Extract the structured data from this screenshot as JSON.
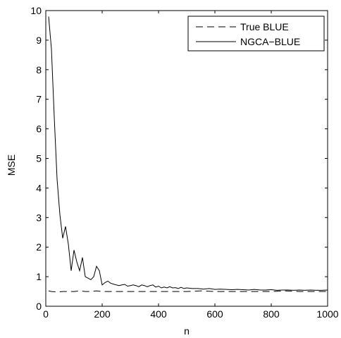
{
  "chart_data": {
    "type": "line",
    "xlabel": "n",
    "ylabel": "MSE",
    "xlim": [
      0,
      1000
    ],
    "ylim": [
      0,
      10
    ],
    "xticks": [
      0,
      200,
      400,
      600,
      800,
      1000
    ],
    "yticks": [
      0,
      1,
      2,
      3,
      4,
      5,
      6,
      7,
      8,
      9,
      10
    ],
    "grid": false,
    "legend_position": "top-right",
    "series": [
      {
        "name": "True BLUE",
        "style": "dashed",
        "color": "#000000",
        "x": [
          10,
          20,
          40,
          60,
          80,
          100,
          120,
          140,
          160,
          180,
          200,
          250,
          300,
          350,
          400,
          450,
          500,
          550,
          600,
          650,
          700,
          750,
          800,
          850,
          900,
          950,
          1000
        ],
        "y": [
          0.52,
          0.5,
          0.48,
          0.5,
          0.5,
          0.5,
          0.52,
          0.5,
          0.5,
          0.52,
          0.5,
          0.5,
          0.5,
          0.5,
          0.5,
          0.5,
          0.5,
          0.52,
          0.5,
          0.5,
          0.5,
          0.5,
          0.5,
          0.52,
          0.5,
          0.5,
          0.5
        ]
      },
      {
        "name": "NGCA−BLUE",
        "style": "solid",
        "color": "#000000",
        "x": [
          10,
          20,
          30,
          40,
          50,
          60,
          70,
          80,
          90,
          100,
          110,
          120,
          130,
          140,
          150,
          160,
          170,
          180,
          190,
          200,
          210,
          220,
          230,
          240,
          250,
          260,
          270,
          280,
          290,
          300,
          310,
          320,
          330,
          340,
          350,
          360,
          370,
          380,
          390,
          400,
          410,
          420,
          430,
          440,
          450,
          460,
          470,
          480,
          490,
          500,
          520,
          540,
          560,
          580,
          600,
          620,
          640,
          660,
          680,
          700,
          720,
          740,
          760,
          780,
          800,
          820,
          840,
          860,
          880,
          900,
          920,
          940,
          960,
          980,
          1000
        ],
        "y": [
          9.8,
          8.7,
          6.4,
          4.3,
          3.1,
          2.3,
          2.7,
          2.1,
          1.2,
          1.9,
          1.5,
          1.2,
          1.65,
          1.0,
          0.95,
          0.9,
          1.0,
          1.35,
          1.2,
          0.72,
          0.8,
          0.85,
          0.78,
          0.75,
          0.72,
          0.7,
          0.72,
          0.74,
          0.68,
          0.7,
          0.72,
          0.7,
          0.66,
          0.72,
          0.7,
          0.66,
          0.7,
          0.72,
          0.65,
          0.68,
          0.62,
          0.65,
          0.62,
          0.66,
          0.62,
          0.63,
          0.6,
          0.64,
          0.6,
          0.62,
          0.6,
          0.6,
          0.58,
          0.6,
          0.57,
          0.58,
          0.57,
          0.56,
          0.57,
          0.56,
          0.55,
          0.57,
          0.55,
          0.55,
          0.56,
          0.54,
          0.55,
          0.55,
          0.54,
          0.55,
          0.54,
          0.55,
          0.54,
          0.54,
          0.55
        ]
      }
    ]
  }
}
